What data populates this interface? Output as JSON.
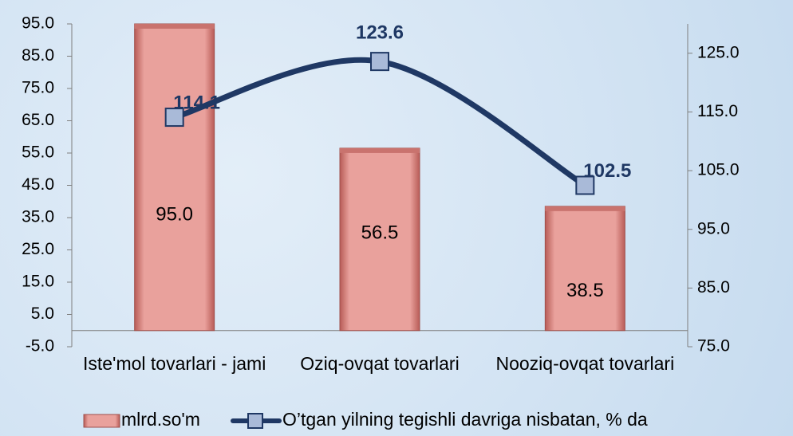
{
  "chart_data": {
    "type": "bar_line",
    "categories": [
      "Iste'mol tovarlari - jami",
      "Oziq-ovqat tovarlari",
      "Nooziq-ovqat tovarlari"
    ],
    "series": [
      {
        "name": "mlrd.so'm",
        "type": "bar",
        "color": "#e9a19c",
        "values": [
          95.0,
          56.5,
          38.5
        ],
        "value_labels": [
          "95.0",
          "56.5",
          "38.5"
        ]
      },
      {
        "name": "O’tgan yilning tegishli davriga nisbatan, % da",
        "type": "line",
        "axis": "y2",
        "color": "#1f3864",
        "marker_color": "#a9bad8",
        "values": [
          114.1,
          123.6,
          102.5
        ]
      }
    ],
    "ylim": [
      -5,
      95
    ],
    "yticks": [
      {
        "value": -5,
        "label": "-5.0"
      },
      {
        "value": 5,
        "label": "5.0"
      },
      {
        "value": 15,
        "label": "15.0"
      },
      {
        "value": 25,
        "label": "25.0"
      },
      {
        "value": 35,
        "label": "35.0"
      },
      {
        "value": 45,
        "label": "45.0"
      },
      {
        "value": 55,
        "label": "55.0"
      },
      {
        "value": 65,
        "label": "65.0"
      },
      {
        "value": 75,
        "label": "75.0"
      },
      {
        "value": 85,
        "label": "85.0"
      },
      {
        "value": 95,
        "label": "95.0"
      }
    ],
    "y2lim": [
      75,
      130
    ],
    "y2ticks": [
      {
        "value": 75,
        "label": "75.0"
      },
      {
        "value": 85,
        "label": "85.0"
      },
      {
        "value": 95,
        "label": "95.0"
      },
      {
        "value": 105,
        "label": "105.0"
      },
      {
        "value": 115,
        "label": "115.0"
      },
      {
        "value": 125,
        "label": "125.0"
      }
    ],
    "legend": "bottom"
  }
}
